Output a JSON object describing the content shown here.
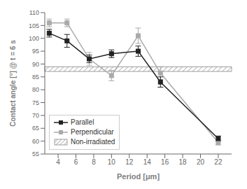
{
  "chart_data": {
    "type": "line",
    "xlabel": "Period [μm]",
    "ylabel": "Contact angle [°] @ t = 6 s",
    "x": [
      3,
      5,
      7.5,
      10,
      13,
      15.5,
      22
    ],
    "series": [
      {
        "name": "Parallel",
        "color": "#222222",
        "marker": "square",
        "line_style": "solid",
        "values": [
          102,
          99,
          92,
          94,
          95,
          83,
          61
        ],
        "yerr": [
          1.5,
          2.5,
          1.5,
          1.5,
          2.0,
          2.0,
          1.0
        ]
      },
      {
        "name": "Perpendicular",
        "color": "#aaaaaa",
        "marker": "square",
        "line_style": "solid",
        "values": [
          106,
          106,
          92,
          85.5,
          101,
          86.5,
          59.5
        ],
        "yerr": [
          1.5,
          1.5,
          2.5,
          2.0,
          3.0,
          2.5,
          1.0
        ]
      }
    ],
    "band": {
      "name": "Non-irradiated",
      "low": 87.1,
      "high": 88.9,
      "color": "#888888"
    },
    "xlim": [
      2.5,
      23.5
    ],
    "ylim": [
      55,
      110
    ],
    "xticks": [
      4,
      6,
      8,
      10,
      12,
      14,
      16,
      18,
      20,
      22
    ],
    "yticks": [
      55,
      60,
      65,
      70,
      75,
      80,
      85,
      90,
      95,
      100,
      105,
      110
    ],
    "grid": false,
    "legend": "lower left"
  }
}
